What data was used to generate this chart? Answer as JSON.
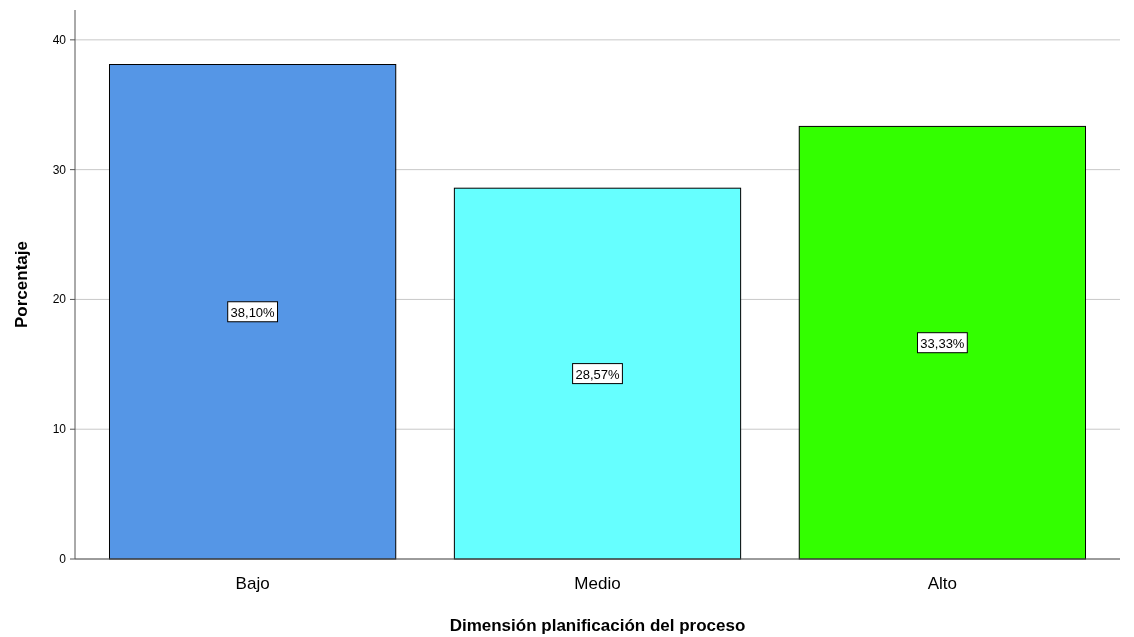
{
  "chart_data": {
    "type": "bar",
    "xlabel": "Dimensión planificación del proceso",
    "ylabel": "Porcentaje",
    "categories": [
      "Bajo",
      "Medio",
      "Alto"
    ],
    "values": [
      38.1,
      28.57,
      33.33
    ],
    "value_labels": [
      "38,10%",
      "28,57%",
      "33,33%"
    ],
    "colors": [
      "#5596e6",
      "#66ffff",
      "#33ff00"
    ],
    "ylim": [
      0,
      42.3
    ],
    "yticks": [
      0,
      10,
      20,
      30,
      40
    ],
    "grid": "y"
  }
}
